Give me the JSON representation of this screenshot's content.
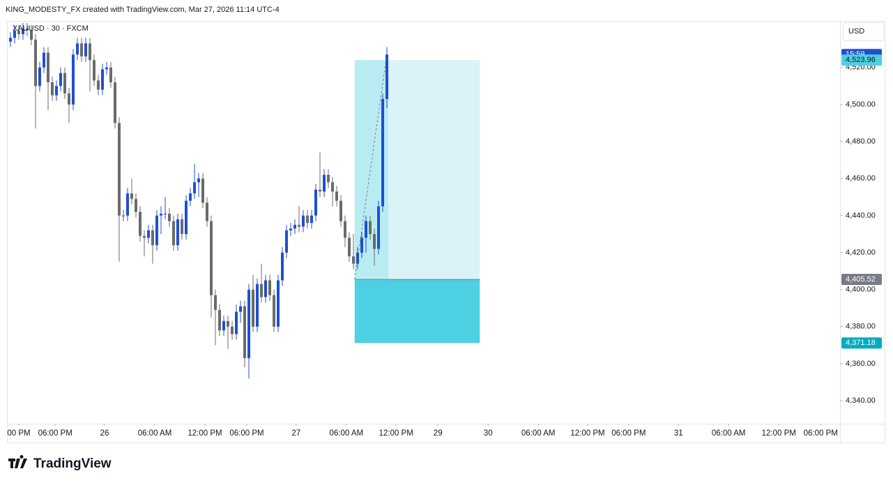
{
  "header": {
    "text": "KING_MODESTY_FX created with TradingView.com, Mar 27, 2026 11:14 UTC-4"
  },
  "footer": {
    "logo": "TradingView"
  },
  "chart_data": {
    "type": "candlestick",
    "title": "XAUUSD · 30 · FXCM",
    "currency": "USD",
    "countdown": "15:59",
    "up_color": "#1f4fd1",
    "down_color": "#6a6a6a",
    "xlim": [
      -0.83,
      198.33
    ],
    "xticks": [
      {
        "value": 2,
        "label": "00 PM"
      },
      {
        "value": 10.7,
        "label": "06:00 PM"
      },
      {
        "value": 22.5,
        "label": "26"
      },
      {
        "value": 34.5,
        "label": "06:00 AM"
      },
      {
        "value": 46.5,
        "label": "12:00 PM"
      },
      {
        "value": 56.5,
        "label": "06:00 PM"
      },
      {
        "value": 68.3,
        "label": "27"
      },
      {
        "value": 80.3,
        "label": "06:00 AM"
      },
      {
        "value": 92.2,
        "label": "12:00 PM"
      },
      {
        "value": 102.2,
        "label": "29"
      },
      {
        "value": 114.2,
        "label": "30"
      },
      {
        "value": 126.2,
        "label": "06:00 AM"
      },
      {
        "value": 138,
        "label": "12:00 PM"
      },
      {
        "value": 147.8,
        "label": "06:00 PM"
      },
      {
        "value": 159.7,
        "label": "31"
      },
      {
        "value": 171.7,
        "label": "06:00 AM"
      },
      {
        "value": 183.7,
        "label": "12:00 PM"
      },
      {
        "value": 193.7,
        "label": "06:00 PM"
      }
    ],
    "ylim": [
      4327.6,
      4544.4
    ],
    "yticks": [
      {
        "value": 4340,
        "label": "4,340.00"
      },
      {
        "value": 4360,
        "label": "4,360.00"
      },
      {
        "value": 4380,
        "label": "4,380.00"
      },
      {
        "value": 4400,
        "label": "4,400.00"
      },
      {
        "value": 4420,
        "label": "4,420.00"
      },
      {
        "value": 4440,
        "label": "4,440.00"
      },
      {
        "value": 4460,
        "label": "4,460.00"
      },
      {
        "value": 4480,
        "label": "4,480.00"
      },
      {
        "value": 4500,
        "label": "4,500.00"
      },
      {
        "value": 4520,
        "label": "4,520.00"
      }
    ],
    "series": [
      {
        "open": [
          4534,
          4536,
          4540,
          4538,
          4541,
          4540,
          4535,
          4510,
          4520,
          4528,
          4512,
          4505,
          4510,
          4517,
          4506,
          4500,
          4527,
          4533,
          4526,
          4533,
          4524,
          4513,
          4508,
          4519,
          4520,
          4512,
          4490,
          4440,
          4440,
          4452,
          4449,
          4442,
          4429,
          4428,
          4432,
          4424,
          4440,
          4441,
          4441,
          4437,
          4424,
          4438,
          4430,
          4448,
          4452,
          4458,
          4460,
          4447,
          4437,
          4397,
          4389,
          4378,
          4383,
          4380,
          4376,
          4388,
          4391,
          4363,
          4400,
          4380,
          4403,
          4396,
          4405,
          4397,
          4380,
          4405,
          4420,
          4432,
          4433,
          4435,
          4434,
          4440,
          4436,
          4440,
          4454,
          4453,
          4462,
          4458,
          4453,
          4448,
          4437,
          4428,
          4418,
          4414,
          4420,
          4428,
          4437,
          4430,
          4422,
          4445,
          4503
        ],
        "high": [
          4539,
          4543,
          4543,
          4544,
          4544,
          4543,
          4538,
          4523,
          4531,
          4531,
          4515,
          4513,
          4520,
          4520,
          4509,
          4530,
          4536,
          4536,
          4536,
          4536,
          4527,
          4516,
          4522,
          4523,
          4523,
          4515,
          4493,
          4443,
          4455,
          4460,
          4452,
          4445,
          4432,
          4435,
          4435,
          4443,
          4445,
          4450,
          4444,
          4440,
          4441,
          4441,
          4451,
          4455,
          4468,
          4463,
          4463,
          4450,
          4440,
          4400,
          4392,
          4386,
          4386,
          4383,
          4392,
          4394,
          4394,
          4403,
          4408,
          4406,
          4414,
          4408,
          4408,
          4400,
          4408,
          4423,
          4435,
          4436,
          4438,
          4445,
          4443,
          4443,
          4443,
          4457,
          4474,
          4465,
          4465,
          4461,
          4456,
          4451,
          4440,
          4431,
          4430,
          4423,
          4431,
          4440,
          4440,
          4433,
          4448,
          4506,
          4531
        ],
        "low": [
          4531,
          4533,
          4535,
          4535,
          4537,
          4532,
          4487,
          4507,
          4517,
          4497,
          4502,
          4502,
          4507,
          4503,
          4490,
          4497,
          4524,
          4523,
          4523,
          4507,
          4510,
          4505,
          4505,
          4516,
          4509,
          4487,
          4415,
          4437,
          4437,
          4446,
          4439,
          4426,
          4418,
          4425,
          4414,
          4421,
          4430,
          4438,
          4434,
          4421,
          4421,
          4427,
          4427,
          4445,
          4449,
          4450,
          4444,
          4434,
          4385,
          4370,
          4375,
          4375,
          4368,
          4373,
          4373,
          4382,
          4358,
          4352,
          4377,
          4377,
          4393,
          4393,
          4394,
          4377,
          4377,
          4402,
          4417,
          4429,
          4430,
          4431,
          4431,
          4433,
          4433,
          4437,
          4450,
          4450,
          4455,
          4445,
          4445,
          4434,
          4423,
          4415,
          4411,
          4411,
          4417,
          4420,
          4427,
          4413,
          4419,
          4442,
          4498
        ],
        "close": [
          4536,
          4540,
          4538,
          4541,
          4540,
          4535,
          4510,
          4520,
          4528,
          4512,
          4505,
          4510,
          4517,
          4506,
          4500,
          4527,
          4533,
          4526,
          4533,
          4524,
          4513,
          4508,
          4519,
          4520,
          4512,
          4490,
          4440,
          4440,
          4452,
          4449,
          4442,
          4429,
          4428,
          4432,
          4424,
          4440,
          4441,
          4441,
          4437,
          4424,
          4438,
          4430,
          4448,
          4452,
          4458,
          4460,
          4447,
          4437,
          4397,
          4389,
          4378,
          4383,
          4380,
          4376,
          4388,
          4391,
          4363,
          4400,
          4380,
          4403,
          4396,
          4405,
          4397,
          4380,
          4405,
          4420,
          4432,
          4433,
          4435,
          4434,
          4440,
          4436,
          4440,
          4454,
          4453,
          4462,
          4458,
          4453,
          4448,
          4437,
          4428,
          4418,
          4414,
          4420,
          4428,
          4437,
          4430,
          4422,
          4445,
          4503,
          4527
        ]
      }
    ],
    "position": {
      "x_start": 82.3,
      "x_end": 112.2,
      "target": {
        "value": 4523.96,
        "label": "4,523.96"
      },
      "entry": {
        "value": 4405.52,
        "label": "4,405.52"
      },
      "stop": {
        "value": 4371.18,
        "label": "4,371.18"
      },
      "profit_color": "#d9f3f7",
      "active_color": "#b9ecf2",
      "loss_color": "#4dd0e1"
    }
  }
}
